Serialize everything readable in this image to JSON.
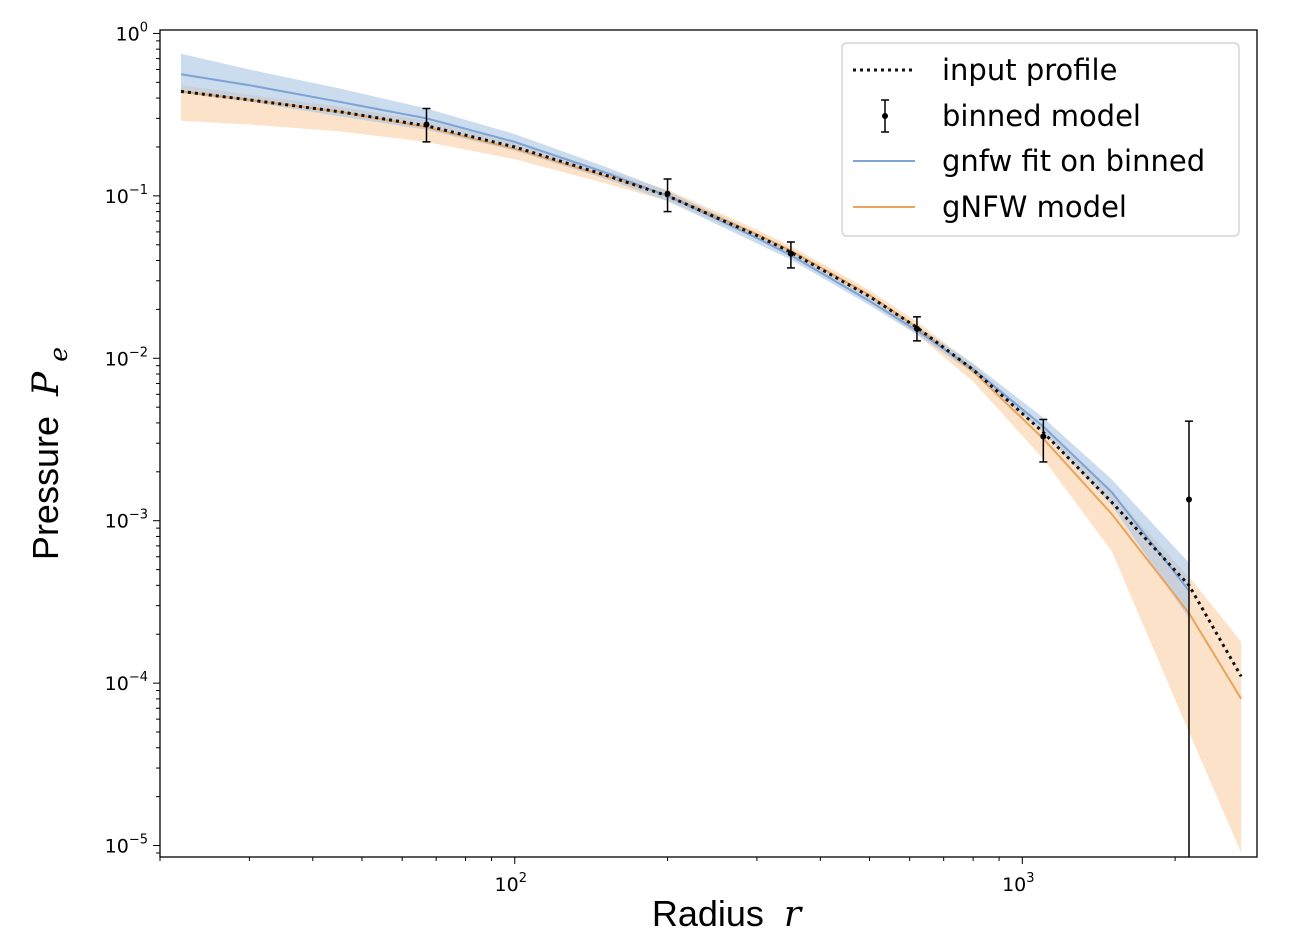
{
  "chart_data": {
    "type": "line",
    "xscale": "log",
    "yscale": "log",
    "xlim": [
      20,
      2900
    ],
    "ylim": [
      8.5e-06,
      1.05
    ],
    "grid": false,
    "legend_position": "top-right",
    "x_ticks": [
      {
        "base": "10",
        "exp": "2",
        "value": 100
      },
      {
        "base": "10",
        "exp": "3",
        "value": 1000
      }
    ],
    "y_ticks": [
      {
        "base": "10",
        "exp": "0",
        "value": 1
      },
      {
        "base": "10",
        "exp": "−1",
        "value": 0.1
      },
      {
        "base": "10",
        "exp": "−2",
        "value": 0.01
      },
      {
        "base": "10",
        "exp": "−3",
        "value": 0.001
      },
      {
        "base": "10",
        "exp": "−4",
        "value": 0.0001
      },
      {
        "base": "10",
        "exp": "−5",
        "value": 1e-05
      }
    ],
    "xlabel": {
      "text": "Radius",
      "symbol": "r"
    },
    "ylabel": {
      "text": "Pressure",
      "symbol": "P",
      "subscript": "e"
    },
    "colors": {
      "input": "#111111",
      "binned": "#000000",
      "gnfw_fit": "#7ea3d4",
      "gnfw_fit_band": "#a9c4e4",
      "gnfw_model": "#e8a45e",
      "gnfw_model_band": "#f8cfa3"
    },
    "series": [
      {
        "name": "input profile",
        "style": "dotted",
        "x": [
          22,
          30,
          45,
          67,
          100,
          150,
          200,
          300,
          350,
          500,
          620,
          800,
          1100,
          1500,
          2130,
          2700
        ],
        "y": [
          0.44,
          0.39,
          0.33,
          0.27,
          0.2,
          0.135,
          0.1,
          0.057,
          0.045,
          0.024,
          0.0155,
          0.0085,
          0.0035,
          0.0013,
          0.0004,
          0.00011
        ]
      },
      {
        "name": "binned model",
        "style": "errorbar",
        "x": [
          67,
          200,
          350,
          620,
          1100,
          2130
        ],
        "y": [
          0.275,
          0.103,
          0.044,
          0.0152,
          0.0033,
          0.00135
        ],
        "y_low": [
          0.215,
          0.08,
          0.036,
          0.0128,
          0.0023,
          8.5e-06
        ],
        "y_high": [
          0.345,
          0.127,
          0.052,
          0.018,
          0.0042,
          0.0041
        ]
      },
      {
        "name": "gnfw fit on binned",
        "style": "line",
        "x": [
          22,
          30,
          45,
          67,
          100,
          150,
          200,
          300,
          350,
          500,
          620,
          800,
          1100,
          1500,
          2130
        ],
        "y": [
          0.56,
          0.48,
          0.38,
          0.3,
          0.215,
          0.14,
          0.1,
          0.055,
          0.043,
          0.0225,
          0.0148,
          0.0086,
          0.0038,
          0.0015,
          0.00037
        ],
        "band_low": [
          0.43,
          0.38,
          0.31,
          0.255,
          0.19,
          0.128,
          0.093,
          0.051,
          0.0405,
          0.0212,
          0.014,
          0.0081,
          0.0035,
          0.00125,
          0.00025
        ],
        "band_high": [
          0.75,
          0.6,
          0.46,
          0.345,
          0.24,
          0.152,
          0.107,
          0.059,
          0.0455,
          0.0238,
          0.0158,
          0.0093,
          0.0043,
          0.0018,
          0.00055
        ]
      },
      {
        "name": "gNFW model",
        "style": "line",
        "x": [
          22,
          30,
          45,
          67,
          100,
          150,
          200,
          300,
          350,
          500,
          620,
          800,
          1100,
          1500,
          2130,
          2700
        ],
        "y": [
          0.44,
          0.39,
          0.33,
          0.265,
          0.195,
          0.133,
          0.101,
          0.058,
          0.046,
          0.0245,
          0.0155,
          0.0083,
          0.0032,
          0.0011,
          0.00027,
          8e-05
        ],
        "band_low": [
          0.29,
          0.275,
          0.25,
          0.215,
          0.168,
          0.12,
          0.093,
          0.054,
          0.043,
          0.0225,
          0.014,
          0.0072,
          0.0024,
          0.00065,
          5e-05,
          9e-06
        ],
        "band_high": [
          0.48,
          0.42,
          0.355,
          0.29,
          0.215,
          0.145,
          0.109,
          0.062,
          0.049,
          0.0262,
          0.0168,
          0.0092,
          0.0037,
          0.0015,
          0.00045,
          0.00018
        ]
      }
    ]
  }
}
